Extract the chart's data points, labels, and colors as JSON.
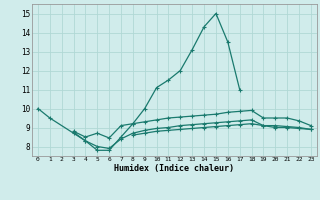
{
  "xlabel": "Humidex (Indice chaleur)",
  "background_color": "#d0eceb",
  "grid_color": "#b0d8d5",
  "line_color": "#1a7a6e",
  "xlim": [
    -0.5,
    23.5
  ],
  "ylim": [
    7.5,
    15.5
  ],
  "xticks": [
    0,
    1,
    2,
    3,
    4,
    5,
    6,
    7,
    8,
    9,
    10,
    11,
    12,
    13,
    14,
    15,
    16,
    17,
    18,
    19,
    20,
    21,
    22,
    23
  ],
  "yticks": [
    8,
    9,
    10,
    11,
    12,
    13,
    14,
    15
  ],
  "c1_x": [
    0,
    1,
    3,
    4,
    5,
    6,
    7,
    8,
    9,
    10,
    11,
    12,
    13,
    14,
    15,
    16,
    17
  ],
  "c1_y": [
    10.0,
    9.5,
    8.7,
    8.3,
    7.8,
    7.8,
    8.5,
    9.2,
    10.0,
    11.1,
    11.5,
    12.0,
    13.1,
    14.3,
    15.0,
    13.5,
    11.0
  ],
  "c2_x": [
    3,
    4,
    5,
    6,
    7,
    8,
    9,
    10,
    11,
    12,
    13,
    14,
    15,
    16,
    17,
    18,
    19,
    20,
    21,
    22,
    23
  ],
  "c2_y": [
    8.8,
    8.5,
    8.7,
    8.45,
    9.1,
    9.2,
    9.3,
    9.4,
    9.5,
    9.55,
    9.6,
    9.65,
    9.7,
    9.8,
    9.85,
    9.9,
    9.5,
    9.5,
    9.5,
    9.35,
    9.1
  ],
  "c3_x": [
    3,
    4,
    5,
    6,
    7,
    8,
    9,
    10,
    11,
    12,
    13,
    14,
    15,
    16,
    17,
    18,
    19,
    20,
    21,
    22,
    23
  ],
  "c3_y": [
    8.75,
    8.3,
    8.0,
    7.9,
    8.4,
    8.7,
    8.85,
    8.95,
    9.0,
    9.1,
    9.15,
    9.2,
    9.25,
    9.3,
    9.35,
    9.4,
    9.1,
    9.1,
    9.05,
    9.0,
    8.9
  ],
  "c4_x": [
    8,
    9,
    10,
    11,
    12,
    13,
    14,
    15,
    16,
    17,
    18,
    19,
    20,
    21,
    22,
    23
  ],
  "c4_y": [
    8.6,
    8.7,
    8.8,
    8.85,
    8.9,
    8.95,
    9.0,
    9.05,
    9.1,
    9.15,
    9.2,
    9.1,
    9.0,
    9.0,
    8.95,
    8.9
  ],
  "marker": "+",
  "markersize": 3,
  "linewidth": 0.9
}
